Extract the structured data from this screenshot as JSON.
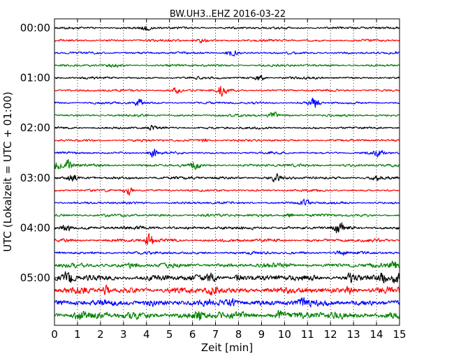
{
  "chart_data": {
    "type": "line",
    "title": "BW.UH3..EHZ 2016-03-22",
    "xlabel": "Zeit  [min]",
    "ylabel": "UTC (Lokalzeit = UTC + 01:00)",
    "xlim": [
      0,
      15
    ],
    "x_ticks": [
      "0",
      "1",
      "2",
      "3",
      "4",
      "5",
      "6",
      "7",
      "8",
      "9",
      "10",
      "11",
      "12",
      "13",
      "14",
      "15"
    ],
    "y_tick_labels": [
      "00:00",
      "01:00",
      "02:00",
      "03:00",
      "04:00",
      "05:00"
    ],
    "grid": "vertical dotted",
    "trace_colors": [
      "#000000",
      "#ff0000",
      "#0000ff",
      "#008000"
    ],
    "traces": [
      {
        "start": "00:00",
        "color": "#000000",
        "amplitude": 0.5,
        "events": [
          [
            4.0,
            1.2
          ]
        ]
      },
      {
        "start": "00:15",
        "color": "#ff0000",
        "amplitude": 0.5,
        "events": [
          [
            6.4,
            1.0
          ]
        ]
      },
      {
        "start": "00:30",
        "color": "#0000ff",
        "amplitude": 0.5,
        "events": [
          [
            7.7,
            2.0
          ]
        ]
      },
      {
        "start": "00:45",
        "color": "#008000",
        "amplitude": 0.5,
        "events": [
          [
            2.5,
            1.0
          ]
        ]
      },
      {
        "start": "01:00",
        "color": "#000000",
        "amplitude": 0.5,
        "events": [
          [
            8.9,
            1.4
          ]
        ]
      },
      {
        "start": "01:15",
        "color": "#ff0000",
        "amplitude": 0.5,
        "events": [
          [
            5.3,
            1.0
          ],
          [
            7.3,
            2.5
          ]
        ]
      },
      {
        "start": "01:30",
        "color": "#0000ff",
        "amplitude": 0.5,
        "events": [
          [
            3.7,
            2.0
          ],
          [
            11.3,
            2.4
          ]
        ]
      },
      {
        "start": "01:45",
        "color": "#008000",
        "amplitude": 0.5,
        "events": [
          [
            9.5,
            1.8
          ]
        ]
      },
      {
        "start": "02:00",
        "color": "#000000",
        "amplitude": 0.5,
        "events": [
          [
            4.2,
            1.0
          ]
        ]
      },
      {
        "start": "02:15",
        "color": "#ff0000",
        "amplitude": 0.5,
        "events": [
          [
            6.5,
            1.0
          ]
        ]
      },
      {
        "start": "02:30",
        "color": "#0000ff",
        "amplitude": 0.5,
        "events": [
          [
            4.3,
            2.0
          ],
          [
            14.1,
            1.5
          ]
        ]
      },
      {
        "start": "02:45",
        "color": "#008000",
        "amplitude": 0.6,
        "events": [
          [
            0.1,
            2.5
          ],
          [
            0.6,
            2.3
          ],
          [
            6.1,
            1.8
          ]
        ]
      },
      {
        "start": "03:00",
        "color": "#000000",
        "amplitude": 0.6,
        "events": [
          [
            0.8,
            1.6
          ],
          [
            9.6,
            1.7
          ],
          [
            14.0,
            1.3
          ]
        ]
      },
      {
        "start": "03:15",
        "color": "#ff0000",
        "amplitude": 0.5,
        "events": [
          [
            3.2,
            2.0
          ]
        ]
      },
      {
        "start": "03:30",
        "color": "#0000ff",
        "amplitude": 0.5,
        "events": [
          [
            10.9,
            1.5
          ]
        ]
      },
      {
        "start": "03:45",
        "color": "#008000",
        "amplitude": 0.6,
        "events": [
          [
            10.2,
            1.2
          ]
        ]
      },
      {
        "start": "04:00",
        "color": "#000000",
        "amplitude": 0.7,
        "events": [
          [
            0.5,
            1.8
          ],
          [
            12.4,
            2.8
          ]
        ]
      },
      {
        "start": "04:15",
        "color": "#ff0000",
        "amplitude": 0.7,
        "events": [
          [
            4.1,
            2.8
          ]
        ]
      },
      {
        "start": "04:30",
        "color": "#0000ff",
        "amplitude": 0.6,
        "events": [
          [
            12.5,
            1.2
          ]
        ]
      },
      {
        "start": "04:45",
        "color": "#008000",
        "amplitude": 0.9,
        "events": [
          [
            3.4,
            1.5
          ],
          [
            14.8,
            1.8
          ]
        ]
      },
      {
        "start": "05:00",
        "color": "#000000",
        "amplitude": 1.2,
        "events": [
          [
            0.6,
            2.5
          ],
          [
            6.8,
            1.8
          ],
          [
            8.0,
            1.5
          ],
          [
            12.9,
            2.2
          ],
          [
            14.3,
            2.4
          ],
          [
            14.8,
            2.0
          ]
        ]
      },
      {
        "start": "05:15",
        "color": "#ff0000",
        "amplitude": 1.3,
        "events": [
          [
            2.2,
            1.8
          ],
          [
            6.9,
            2.0
          ],
          [
            12.8,
            1.5
          ]
        ]
      },
      {
        "start": "05:30",
        "color": "#0000ff",
        "amplitude": 1.3,
        "events": [
          [
            4.1,
            1.6
          ],
          [
            7.7,
            1.5
          ],
          [
            10.8,
            1.4
          ]
        ]
      },
      {
        "start": "05:45",
        "color": "#008000",
        "amplitude": 1.5,
        "events": [
          [
            1.1,
            2.0
          ],
          [
            6.3,
            1.6
          ],
          [
            9.8,
            1.8
          ]
        ]
      }
    ]
  }
}
